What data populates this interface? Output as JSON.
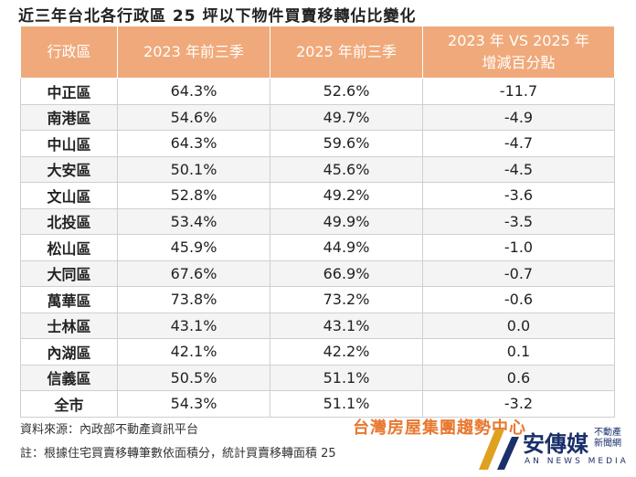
{
  "title": "近三年台北各行政區 25 坪以下物件買賣移轉佔比變化",
  "table": {
    "header": [
      "行政區",
      "2023 年前三季",
      "2025 年前三季",
      [
        "2023 年 VS 2025 年",
        "增減百分點"
      ]
    ],
    "rows": [
      [
        "中正區",
        "64.3%",
        "52.6%",
        "-11.7"
      ],
      [
        "南港區",
        "54.6%",
        "49.7%",
        "-4.9"
      ],
      [
        "中山區",
        "64.3%",
        "59.6%",
        "-4.7"
      ],
      [
        "大安區",
        "50.1%",
        "45.6%",
        "-4.5"
      ],
      [
        "文山區",
        "52.8%",
        "49.2%",
        "-3.6"
      ],
      [
        "北投區",
        "53.4%",
        "49.9%",
        "-3.5"
      ],
      [
        "松山區",
        "45.9%",
        "44.9%",
        "-1.0"
      ],
      [
        "大同區",
        "67.6%",
        "66.9%",
        "-0.7"
      ],
      [
        "萬華區",
        "73.8%",
        "73.2%",
        "-0.6"
      ],
      [
        "士林區",
        "43.1%",
        "43.1%",
        "0.0"
      ],
      [
        "內湖區",
        "42.1%",
        "42.2%",
        "0.1"
      ],
      [
        "信義區",
        "50.5%",
        "51.1%",
        "0.6"
      ],
      [
        "全市",
        "54.3%",
        "51.1%",
        "-3.2"
      ]
    ]
  },
  "footer": {
    "source": "資料來源：內政部不動產資訊平台",
    "brand": "台灣房屋集團趨勢中心",
    "note": "註：根據住宅買賣移轉筆數依面積分，統計買賣移轉面積 25"
  },
  "watermark": {
    "name": "安傳媒",
    "tagline": [
      "不動產",
      "新聞網"
    ],
    "english": "AN NEWS MEDIA"
  }
}
